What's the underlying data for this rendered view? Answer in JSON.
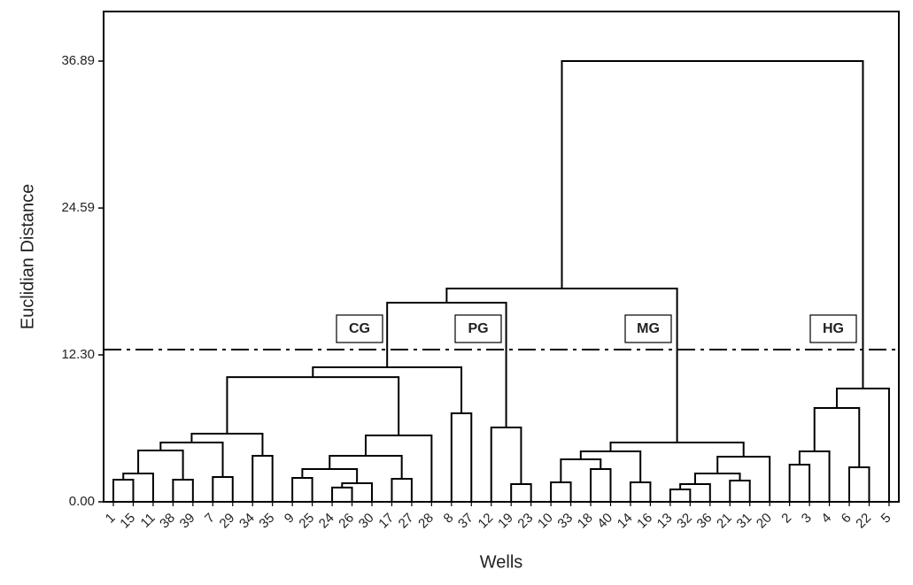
{
  "chart_data": {
    "type": "dendrogram",
    "xlabel": "Wells",
    "ylabel": "Euclidian Distance",
    "ylim": [
      0,
      41.04
    ],
    "yticks": [
      {
        "value": 0,
        "label": "0.00"
      },
      {
        "value": 12.3,
        "label": "12.30"
      },
      24.59,
      36.89
    ],
    "cut_height": 12.74,
    "annotations": [
      "CG",
      "PG",
      "MG",
      "HG"
    ],
    "color": "#000000",
    "tree": {
      "height": 36.89,
      "children": [
        {
          "height": 17.85,
          "children": [
            {
              "height": 16.67,
              "children": [
                {
                  "height": 11.26,
                  "children": [
                    {
                      "height": 10.44,
                      "children": [
                        {
                          "height": 5.7,
                          "children": [
                            {
                              "height": 4.96,
                              "children": [
                                {
                                  "height": 4.3,
                                  "children": [
                                    {
                                      "height": 2.37,
                                      "children": [
                                        {
                                          "height": 1.85,
                                          "children": [
                                            "1",
                                            "15"
                                          ]
                                        },
                                        "11"
                                      ]
                                    },
                                    {
                                      "height": 1.85,
                                      "children": [
                                        "38",
                                        "39"
                                      ]
                                    }
                                  ]
                                },
                                {
                                  "height": 2.07,
                                  "children": [
                                    "7",
                                    "29"
                                  ]
                                }
                              ]
                            },
                            {
                              "height": 3.85,
                              "children": [
                                "34",
                                "35"
                              ]
                            }
                          ]
                        },
                        {
                          "height": 5.56,
                          "children": [
                            {
                              "height": 3.85,
                              "children": [
                                {
                                  "height": 2.74,
                                  "children": [
                                    {
                                      "height": 2.0,
                                      "children": [
                                        "9",
                                        "25"
                                      ]
                                    },
                                    {
                                      "height": 1.56,
                                      "children": [
                                        {
                                          "height": 1.19,
                                          "children": [
                                            "24",
                                            "26"
                                          ]
                                        },
                                        "30"
                                      ]
                                    }
                                  ]
                                },
                                {
                                  "height": 1.93,
                                  "children": [
                                    "17",
                                    "27"
                                  ]
                                }
                              ]
                            },
                            "28"
                          ]
                        }
                      ]
                    },
                    {
                      "height": 7.41,
                      "children": [
                        "8",
                        "37"
                      ]
                    }
                  ]
                },
                {
                  "height": 6.22,
                  "children": [
                    "12",
                    {
                      "height": 1.48,
                      "children": [
                        "19",
                        "23"
                      ]
                    }
                  ]
                }
              ]
            },
            {
              "height": 4.96,
              "children": [
                {
                  "height": 4.22,
                  "children": [
                    {
                      "height": 3.56,
                      "children": [
                        {
                          "height": 1.63,
                          "children": [
                            "10",
                            "33"
                          ]
                        },
                        {
                          "height": 2.74,
                          "children": [
                            "18",
                            "40"
                          ]
                        }
                      ]
                    },
                    {
                      "height": 1.63,
                      "children": [
                        "14",
                        "16"
                      ]
                    }
                  ]
                },
                {
                  "height": 3.78,
                  "children": [
                    {
                      "height": 2.37,
                      "children": [
                        {
                          "height": 1.48,
                          "children": [
                            {
                              "height": 1.04,
                              "children": [
                                "13",
                                "32"
                              ]
                            },
                            "36"
                          ]
                        },
                        {
                          "height": 1.78,
                          "children": [
                            "21",
                            "31"
                          ]
                        }
                      ]
                    },
                    "20"
                  ]
                }
              ]
            }
          ]
        },
        {
          "height": 9.48,
          "children": [
            {
              "height": 7.85,
              "children": [
                {
                  "height": 4.22,
                  "children": [
                    {
                      "height": 3.11,
                      "children": [
                        "2",
                        "3"
                      ]
                    },
                    "4"
                  ]
                },
                {
                  "height": 2.89,
                  "children": [
                    "6",
                    "22"
                  ]
                }
              ]
            },
            "5"
          ]
        }
      ]
    }
  }
}
